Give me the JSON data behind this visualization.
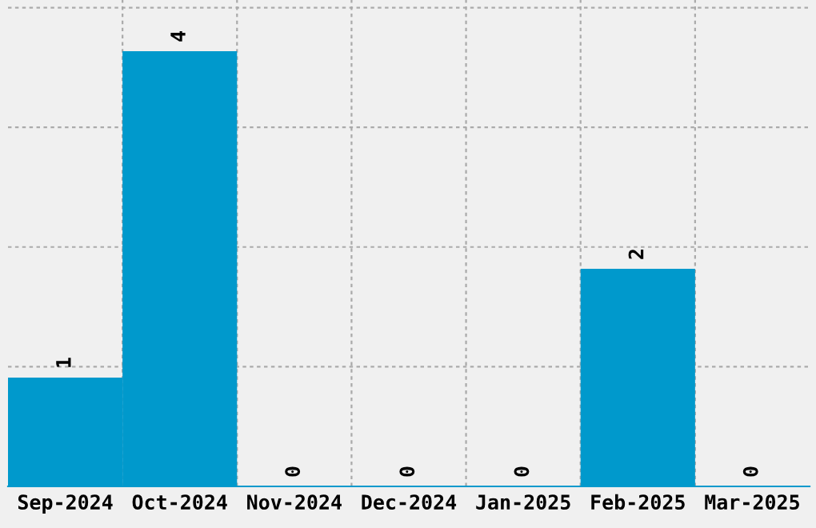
{
  "chart_data": {
    "type": "bar",
    "categories": [
      "Sep-2024",
      "Oct-2024",
      "Nov-2024",
      "Dec-2024",
      "Jan-2025",
      "Feb-2025",
      "Mar-2025"
    ],
    "values": [
      1,
      4,
      0,
      0,
      0,
      2,
      0
    ],
    "color": "#0099cc",
    "data_labels": true,
    "ylim": [
      0,
      4.47
    ],
    "yticks": [
      {
        "value": 1.1,
        "label": null
      },
      {
        "value": 2.2,
        "label": null
      },
      {
        "value": 3.3,
        "label": null
      },
      {
        "value": 4.4,
        "label": null
      }
    ],
    "tick_labels": "x",
    "grid": true
  }
}
